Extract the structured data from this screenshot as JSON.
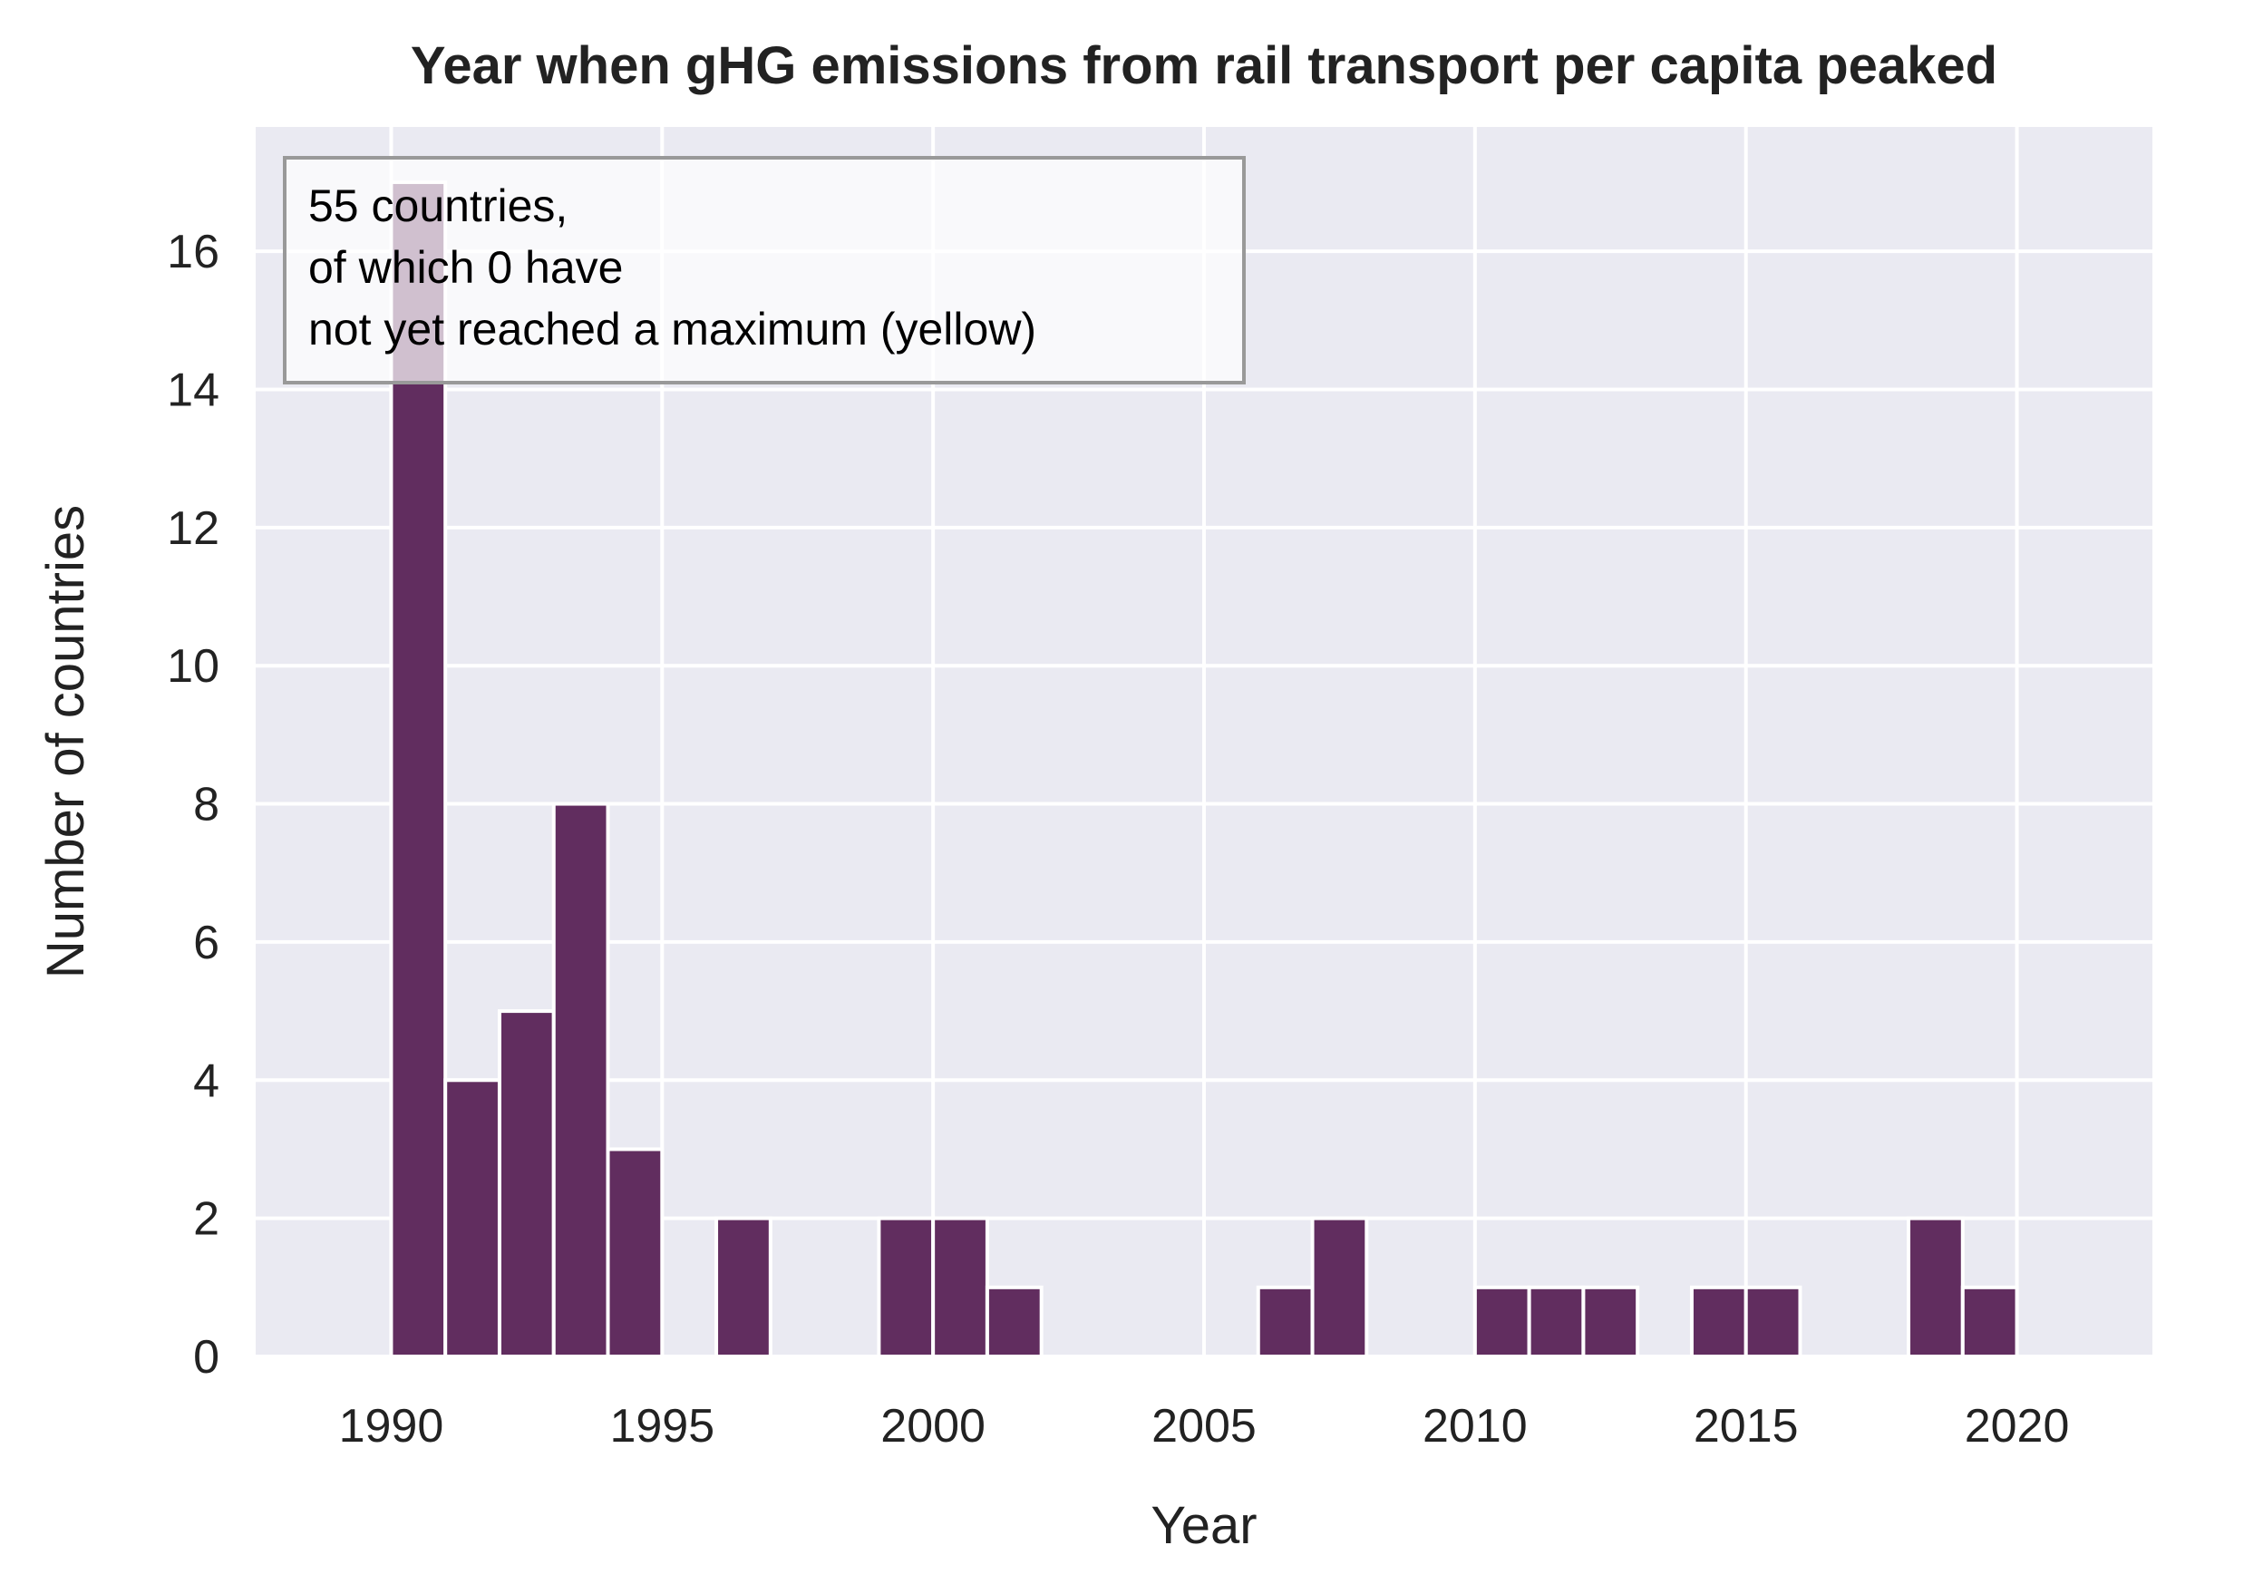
{
  "chart_data": {
    "type": "bar",
    "title": "Year when gHG emissions from rail transport per capita peaked",
    "xlabel": "Year",
    "ylabel": "Number of countries",
    "xlim": [
      1987.5,
      2022.5
    ],
    "ylim": [
      0,
      17.8
    ],
    "xticks": [
      "1990",
      "1995",
      "2000",
      "2005",
      "2010",
      "2015",
      "2020"
    ],
    "yticks": [
      "0",
      "2",
      "4",
      "6",
      "8",
      "10",
      "12",
      "14",
      "16"
    ],
    "bin_width": 1,
    "bars": [
      {
        "x": 1990,
        "value": 17
      },
      {
        "x": 1991,
        "value": 4
      },
      {
        "x": 1992,
        "value": 5
      },
      {
        "x": 1993,
        "value": 8
      },
      {
        "x": 1994,
        "value": 3
      },
      {
        "x": 1996,
        "value": 2
      },
      {
        "x": 1999,
        "value": 2
      },
      {
        "x": 2000,
        "value": 2
      },
      {
        "x": 2001,
        "value": 1
      },
      {
        "x": 2006,
        "value": 1
      },
      {
        "x": 2007,
        "value": 2
      },
      {
        "x": 2010,
        "value": 1
      },
      {
        "x": 2011,
        "value": 1
      },
      {
        "x": 2012,
        "value": 1
      },
      {
        "x": 2014,
        "value": 1
      },
      {
        "x": 2015,
        "value": 1
      },
      {
        "x": 2018,
        "value": 2
      },
      {
        "x": 2019,
        "value": 1
      }
    ],
    "annotation": [
      "55 countries,",
      "of which 0 have",
      "not yet reached a maximum (yellow)"
    ],
    "annotation_position": "top-left",
    "grid": true,
    "colors": {
      "bar": "#612d5f",
      "plot_background": "#eaeaf2",
      "grid": "#ffffff"
    }
  }
}
